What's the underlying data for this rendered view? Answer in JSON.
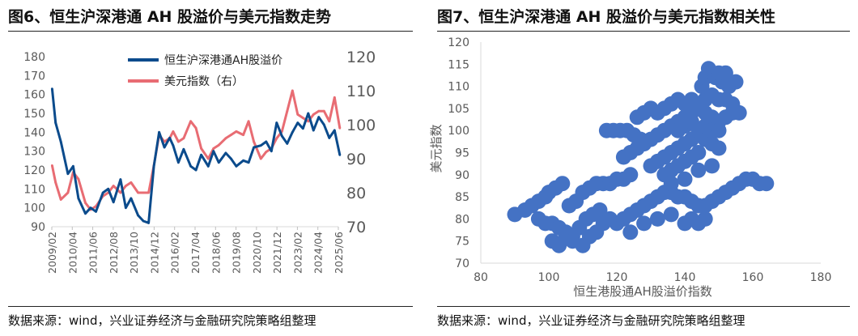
{
  "left": {
    "title": "图6、恒生沪深港通 AH 股溢价与美元指数走势",
    "source": "数据来源：wind，兴业证券经济与金融研究院策略组整理",
    "chart_data": {
      "type": "line",
      "x_ticks": [
        "2009/02",
        "2010/04",
        "2011/06",
        "2012/08",
        "2013/10",
        "2014/12",
        "2016/02",
        "2017/04",
        "2018/06",
        "2019/08",
        "2020/10",
        "2021/12",
        "2023/02",
        "2024/04",
        "2025/06"
      ],
      "y_left": {
        "ylim": [
          90,
          180
        ],
        "ticks": [
          "90",
          "100",
          "110",
          "120",
          "130",
          "140",
          "150",
          "160",
          "170",
          "180"
        ]
      },
      "y_right": {
        "ylim": [
          70,
          120
        ],
        "ticks": [
          "70",
          "80",
          "90",
          "100",
          "110",
          "120"
        ]
      },
      "legend_position": "top-left",
      "series": [
        {
          "name": "恒生沪深港通AH股溢价",
          "axis": "left",
          "color": "#0b4b8c",
          "x": [
            2009.1,
            2009.3,
            2009.6,
            2010.0,
            2010.3,
            2010.6,
            2011.0,
            2011.3,
            2011.6,
            2012.0,
            2012.3,
            2012.6,
            2013.0,
            2013.3,
            2013.6,
            2014.0,
            2014.3,
            2014.6,
            2014.9,
            2015.2,
            2015.5,
            2015.8,
            2016.0,
            2016.3,
            2016.6,
            2017.0,
            2017.3,
            2017.6,
            2018.0,
            2018.3,
            2018.6,
            2019.0,
            2019.3,
            2019.6,
            2020.0,
            2020.3,
            2020.6,
            2021.0,
            2021.3,
            2021.6,
            2021.9,
            2022.2,
            2022.5,
            2022.8,
            2023.1,
            2023.4,
            2023.7,
            2024.0,
            2024.3,
            2024.6,
            2024.9,
            2025.2,
            2025.5
          ],
          "values": [
            163,
            145,
            135,
            118,
            122,
            105,
            97,
            100,
            98,
            108,
            110,
            103,
            115,
            100,
            105,
            96,
            93,
            92,
            122,
            140,
            132,
            137,
            133,
            124,
            131,
            122,
            120,
            128,
            122,
            130,
            124,
            129,
            126,
            122,
            125,
            124,
            132,
            133,
            135,
            130,
            145,
            138,
            134,
            140,
            145,
            142,
            150,
            141,
            148,
            144,
            137,
            141,
            128
          ]
        },
        {
          "name": "美元指数（右）",
          "axis": "right",
          "color": "#e86c73",
          "x": [
            2009.1,
            2009.3,
            2009.6,
            2010.0,
            2010.3,
            2010.6,
            2011.0,
            2011.3,
            2011.6,
            2012.0,
            2012.3,
            2012.6,
            2013.0,
            2013.3,
            2013.6,
            2014.0,
            2014.3,
            2014.6,
            2014.9,
            2015.2,
            2015.5,
            2015.8,
            2016.0,
            2016.3,
            2016.6,
            2017.0,
            2017.3,
            2017.6,
            2018.0,
            2018.3,
            2018.6,
            2019.0,
            2019.3,
            2019.6,
            2020.0,
            2020.3,
            2020.6,
            2021.0,
            2021.3,
            2021.6,
            2021.9,
            2022.2,
            2022.5,
            2022.8,
            2023.1,
            2023.4,
            2023.7,
            2024.0,
            2024.3,
            2024.6,
            2024.9,
            2025.2,
            2025.5
          ],
          "values": [
            88,
            83,
            78,
            80,
            86,
            84,
            77,
            75,
            76,
            79,
            80,
            82,
            80,
            82,
            83,
            80,
            80,
            80,
            88,
            97,
            95,
            96,
            98,
            95,
            96,
            101,
            99,
            93,
            90,
            93,
            94,
            96,
            97,
            98,
            97,
            101,
            95,
            90,
            92,
            93,
            96,
            98,
            104,
            110,
            103,
            102,
            101,
            103,
            104,
            104,
            101,
            108,
            99
          ]
        }
      ]
    }
  },
  "right": {
    "title": "图7、恒生沪深港通 AH 股溢价与美元指数相关性",
    "source": "数据来源：wind，兴业证券经济与金融研究院策略组整理",
    "chart_data": {
      "type": "scatter",
      "xlabel": "恒生港股通AH股溢价指数",
      "ylabel": "美元指数",
      "xlim": [
        80,
        180
      ],
      "ylim": [
        70,
        120
      ],
      "x_ticks": [
        "80",
        "100",
        "120",
        "140",
        "160",
        "180"
      ],
      "y_ticks": [
        "70",
        "75",
        "80",
        "85",
        "90",
        "95",
        "100",
        "105",
        "110",
        "115",
        "120"
      ],
      "color": "#4472c4",
      "points": [
        [
          90,
          81
        ],
        [
          93,
          82
        ],
        [
          95,
          83
        ],
        [
          97,
          84
        ],
        [
          99,
          85
        ],
        [
          100,
          86
        ],
        [
          102,
          87
        ],
        [
          104,
          88
        ],
        [
          101,
          79
        ],
        [
          103,
          78
        ],
        [
          105,
          77
        ],
        [
          107,
          76
        ],
        [
          109,
          78
        ],
        [
          111,
          80
        ],
        [
          113,
          81
        ],
        [
          115,
          82
        ],
        [
          97,
          80
        ],
        [
          99,
          79
        ],
        [
          101,
          75
        ],
        [
          103,
          74
        ],
        [
          105,
          76
        ],
        [
          107,
          75
        ],
        [
          110,
          74
        ],
        [
          112,
          76
        ],
        [
          114,
          77
        ],
        [
          116,
          79
        ],
        [
          118,
          80
        ],
        [
          120,
          79
        ],
        [
          122,
          80
        ],
        [
          124,
          81
        ],
        [
          126,
          82
        ],
        [
          128,
          83
        ],
        [
          130,
          84
        ],
        [
          132,
          85
        ],
        [
          134,
          86
        ],
        [
          136,
          86
        ],
        [
          138,
          85
        ],
        [
          140,
          85
        ],
        [
          142,
          84
        ],
        [
          144,
          83
        ],
        [
          146,
          83
        ],
        [
          148,
          84
        ],
        [
          150,
          85
        ],
        [
          152,
          86
        ],
        [
          154,
          87
        ],
        [
          156,
          88
        ],
        [
          158,
          89
        ],
        [
          160,
          89
        ],
        [
          162,
          88
        ],
        [
          164,
          88
        ],
        [
          140,
          79
        ],
        [
          142,
          80
        ],
        [
          144,
          79
        ],
        [
          146,
          80
        ],
        [
          124,
          77
        ],
        [
          128,
          79
        ],
        [
          132,
          80
        ],
        [
          136,
          81
        ],
        [
          106,
          83
        ],
        [
          108,
          84
        ],
        [
          110,
          86
        ],
        [
          112,
          87
        ],
        [
          114,
          88
        ],
        [
          116,
          88
        ],
        [
          118,
          88
        ],
        [
          120,
          89
        ],
        [
          122,
          89
        ],
        [
          124,
          90
        ],
        [
          117,
          100
        ],
        [
          119,
          100
        ],
        [
          121,
          100
        ],
        [
          123,
          100
        ],
        [
          125,
          99
        ],
        [
          127,
          98
        ],
        [
          122,
          94
        ],
        [
          124,
          95
        ],
        [
          126,
          96
        ],
        [
          128,
          97
        ],
        [
          130,
          98
        ],
        [
          132,
          99
        ],
        [
          134,
          100
        ],
        [
          136,
          101
        ],
        [
          138,
          102
        ],
        [
          140,
          103
        ],
        [
          142,
          104
        ],
        [
          144,
          105
        ],
        [
          146,
          104
        ],
        [
          148,
          103
        ],
        [
          150,
          102
        ],
        [
          152,
          103
        ],
        [
          154,
          104
        ],
        [
          156,
          104
        ],
        [
          130,
          92
        ],
        [
          132,
          93
        ],
        [
          134,
          94
        ],
        [
          136,
          95
        ],
        [
          138,
          96
        ],
        [
          140,
          97
        ],
        [
          142,
          98
        ],
        [
          144,
          99
        ],
        [
          146,
          98
        ],
        [
          148,
          97
        ],
        [
          150,
          96
        ],
        [
          134,
          90
        ],
        [
          136,
          91
        ],
        [
          138,
          92
        ],
        [
          140,
          93
        ],
        [
          142,
          94
        ],
        [
          144,
          95
        ],
        [
          136,
          88
        ],
        [
          140,
          89
        ],
        [
          144,
          91
        ],
        [
          148,
          92
        ],
        [
          132,
          104
        ],
        [
          134,
          105
        ],
        [
          136,
          106
        ],
        [
          138,
          107
        ],
        [
          140,
          106
        ],
        [
          142,
          107
        ],
        [
          144,
          106
        ],
        [
          146,
          107
        ],
        [
          148,
          108
        ],
        [
          150,
          107
        ],
        [
          152,
          107
        ],
        [
          154,
          106
        ],
        [
          145,
          110
        ],
        [
          146,
          112
        ],
        [
          147,
          114
        ],
        [
          149,
          112
        ],
        [
          151,
          111
        ],
        [
          153,
          110
        ],
        [
          150,
          113
        ],
        [
          152,
          113
        ],
        [
          155,
          111
        ],
        [
          126,
          103
        ],
        [
          128,
          104
        ],
        [
          130,
          105
        ],
        [
          138,
          100
        ],
        [
          140,
          101
        ],
        [
          142,
          102
        ],
        [
          144,
          100
        ],
        [
          146,
          101
        ],
        [
          148,
          100
        ],
        [
          150,
          100
        ]
      ]
    }
  }
}
